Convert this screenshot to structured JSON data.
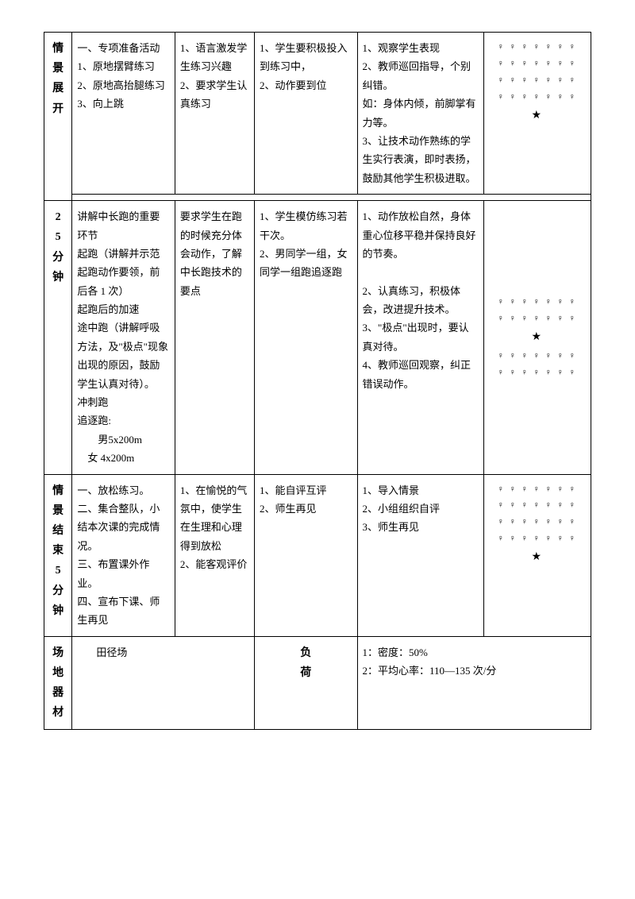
{
  "row1": {
    "header": "情 景 展 开",
    "col2": "一、专项准备活动\n1、原地摆臂练习\n2、原地高抬腿练习\n3、向上跳",
    "col3": "1、语言激发学生练习兴趣\n2、要求学生认真练习",
    "col4": "1、学生要积极投入到练习中，\n2、动作要到位",
    "col5": "1、观察学生表现\n2、教师巡回指导，个别纠错。\n如：身体内倾，前脚掌有力等。\n3、让技术动作熟练的学生实行表演，即时表扬，鼓励其他学生积极进取。",
    "diagram1": "♀ ♀ ♀ ♀ ♀ ♀ ♀\n♀ ♀ ♀ ♀ ♀ ♀ ♀\n♀ ♀ ♀ ♀ ♀ ♀ ♀\n♀ ♀ ♀ ♀ ♀ ♀ ♀\n★"
  },
  "row2": {
    "header": "25 分 钟",
    "col2": "讲解中长跑的重要环节\n起跑（讲解并示范起跑动作要领，前后各 1 次）\n起跑后的加速\n途中跑（讲解呼吸方法，及\"极点\"现象出现的原因，鼓励学生认真对待）。\n冲刺跑\n追逐跑:\n　　男5x200m\n　女  4x200m",
    "col3": "要求学生在跑的时候充分体会动作，了解中长跑技术的要点",
    "col4": "1、学生模仿练习若干次。\n2、男同学一组，女同学一组跑追逐跑",
    "col5": "1、动作放松自然，身体重心位移平稳并保持良好的节奏。\n\n2、认真练习，积极体会，改进提升技术。\n3、\"极点\"出现时，要认真对待。\n4、教师巡回观察，纠正错误动作。",
    "diagram2": "♀ ♀ ♀ ♀ ♀ ♀ ♀\n♀ ♀ ♀ ♀ ♀ ♀ ♀\n★\n♀ ♀ ♀ ♀ ♀ ♀ ♀\n♀ ♀ ♀ ♀ ♀ ♀ ♀"
  },
  "row3": {
    "header": "情 景 结 束 5 分 钟",
    "col2": "一、放松练习。\n二、集合整队，小结本次课的完成情况。\n三、布置课外作业。\n四、宣布下课、师生再见",
    "col3": "1、在愉悦的气氛中，使学生在生理和心理得到放松\n2、能客观评价",
    "col4": "1、能自评互评\n2、师生再见",
    "col5": "1、导入情景\n2、小组组织自评\n3、师生再见",
    "diagram3": "♀ ♀ ♀ ♀ ♀ ♀ ♀\n♀ ♀ ♀ ♀ ♀ ♀ ♀\n♀ ♀ ♀ ♀ ♀ ♀ ♀\n♀ ♀ ♀ ♀ ♀ ♀ ♀\n★"
  },
  "row4": {
    "header1": "场 地 器 材",
    "col2": "田径场",
    "header2": "负 荷",
    "col3": "1：密度：50%\n2：平均心率：110—135 次/分"
  }
}
